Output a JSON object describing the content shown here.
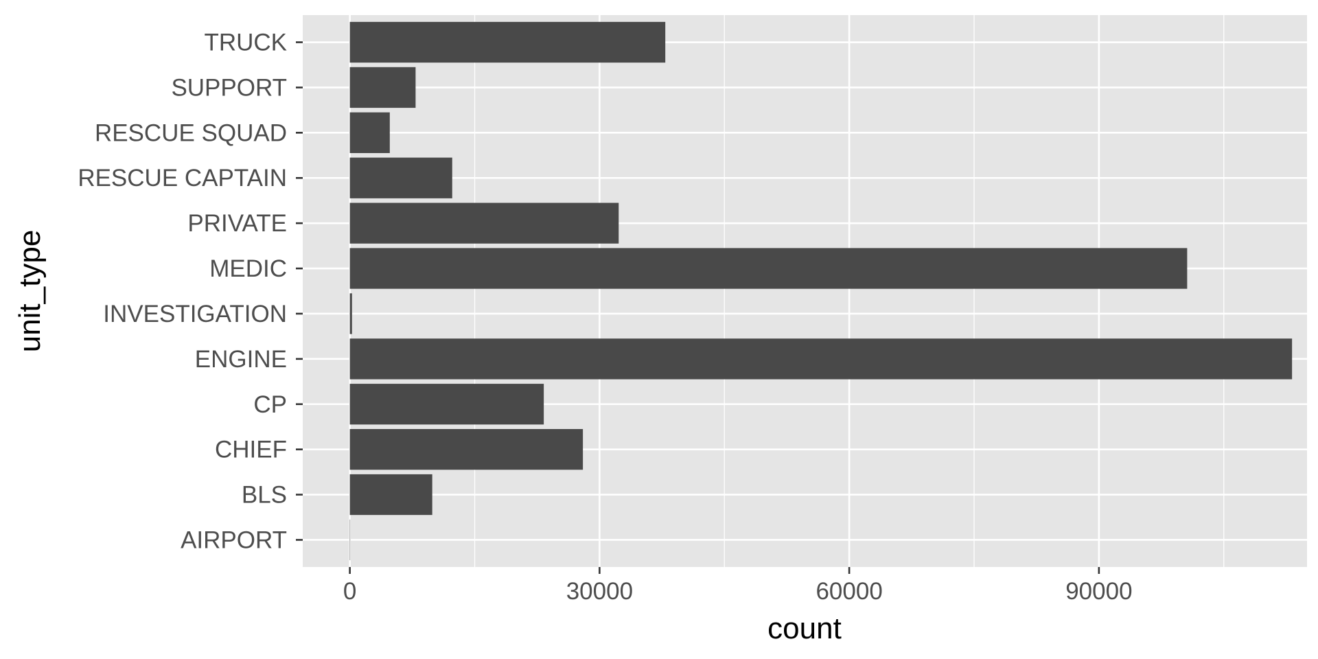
{
  "chart_data": {
    "type": "bar",
    "orientation": "horizontal",
    "xlabel": "count",
    "ylabel": "unit_type",
    "categories": [
      "AIRPORT",
      "BLS",
      "CHIEF",
      "CP",
      "ENGINE",
      "INVESTIGATION",
      "MEDIC",
      "PRIVATE",
      "RESCUE CAPTAIN",
      "RESCUE SQUAD",
      "SUPPORT",
      "TRUCK"
    ],
    "values": [
      30,
      9900,
      28000,
      23300,
      113200,
      260,
      100600,
      32300,
      12300,
      4800,
      7900,
      37900
    ],
    "xlim": [
      -5660,
      115000
    ],
    "x_ticks": [
      0,
      30000,
      60000,
      90000
    ],
    "x_tick_labels": [
      "0",
      "30000",
      "60000",
      "90000"
    ],
    "x_minor_ticks": [
      15000,
      45000,
      75000,
      105000
    ],
    "grid": true,
    "legend": "none",
    "colors": {
      "bar": "#494949",
      "panel": "#e5e5e5",
      "grid": "#ffffff",
      "tick_text": "#4d4d4d",
      "title_text": "#000000"
    }
  }
}
